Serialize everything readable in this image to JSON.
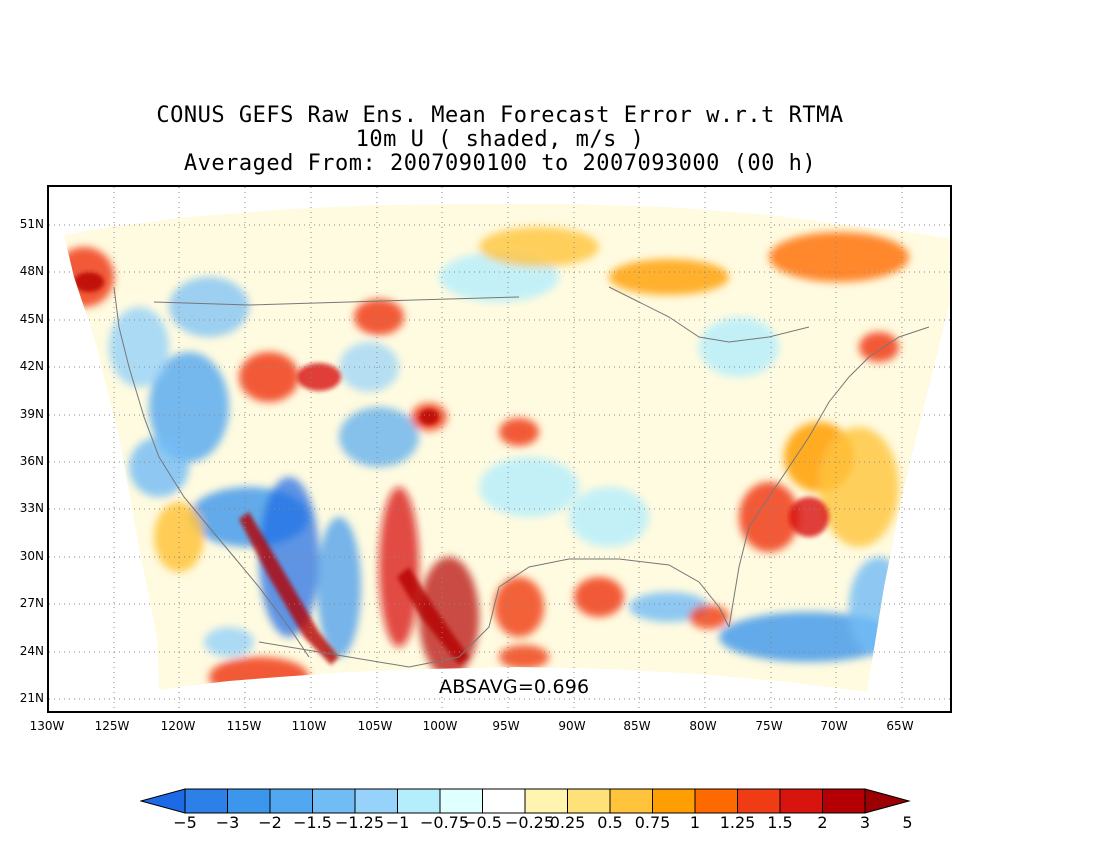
{
  "title": {
    "line1": "CONUS GEFS Raw Ens. Mean Forecast Error w.r.t RTMA",
    "line2": "10m U ( shaded, m/s )",
    "line3": "Averaged From: 2007090100 to 2007093000 (00 h)"
  },
  "annotation": "ABSAVG=0.696",
  "lat_labels": [
    "51N",
    "48N",
    "45N",
    "42N",
    "39N",
    "36N",
    "33N",
    "30N",
    "27N",
    "24N",
    "21N"
  ],
  "lon_labels": [
    "130W",
    "125W",
    "120W",
    "115W",
    "110W",
    "105W",
    "100W",
    "95W",
    "90W",
    "85W",
    "80W",
    "75W",
    "70W",
    "65W"
  ],
  "colorbar": {
    "colors": [
      "#1e6ae6",
      "#2c80e8",
      "#3c96ec",
      "#52a8f0",
      "#72bcf6",
      "#96d2fa",
      "#b4eefc",
      "#e0ffff",
      "#ffffff",
      "#fff5b0",
      "#ffe17a",
      "#ffc43c",
      "#ff9e00",
      "#ff6a00",
      "#f03c14",
      "#d8140f",
      "#b40004",
      "#9a0004"
    ],
    "labels": [
      "−5",
      "−3",
      "−2",
      "−1.5",
      "−1.25",
      "−1",
      "−0.75",
      "−0.5",
      "−0.25",
      "0.25",
      "0.5",
      "0.75",
      "1",
      "1.25",
      "1.5",
      "2",
      "3",
      "5"
    ],
    "min_color": "#1e6ae6",
    "max_color": "#9a0004"
  },
  "map": {
    "variable": "10m U forecast error",
    "units": "m/s",
    "grid": "dotted",
    "lat_range": [
      20,
      53
    ],
    "lon_range": [
      -130,
      -62
    ]
  }
}
